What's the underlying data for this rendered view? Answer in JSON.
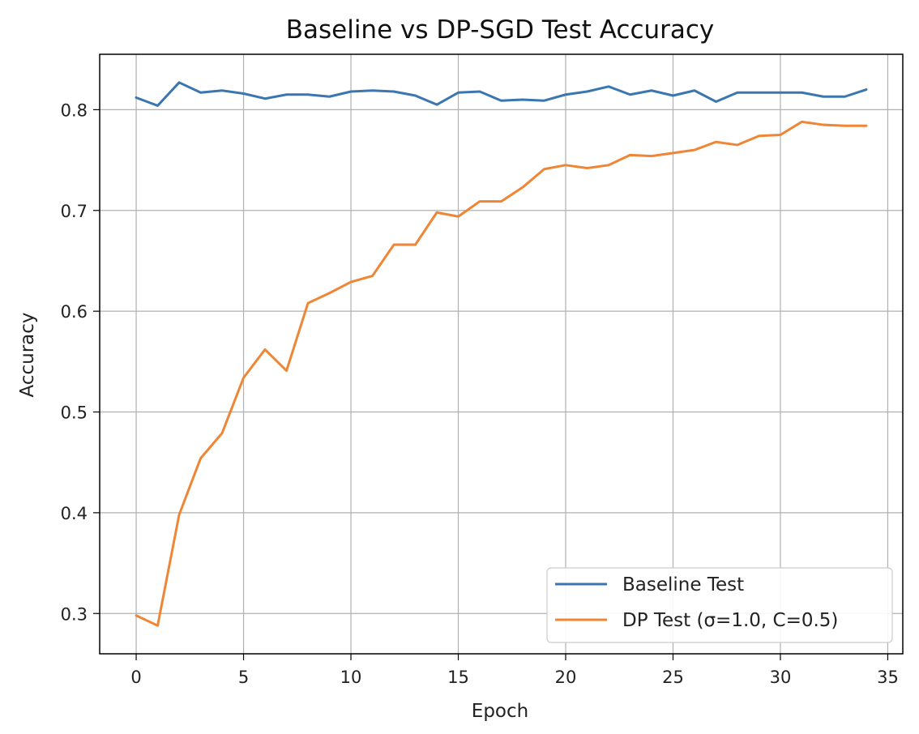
{
  "chart_data": {
    "type": "line",
    "title": "Baseline vs DP-SGD Test Accuracy",
    "xlabel": "Epoch",
    "ylabel": "Accuracy",
    "xlim": [
      -1.7,
      35.7
    ],
    "ylim": [
      0.26,
      0.855
    ],
    "xticks": [
      0,
      5,
      10,
      15,
      20,
      25,
      30,
      35
    ],
    "yticks": [
      0.3,
      0.4,
      0.5,
      0.6,
      0.7,
      0.8
    ],
    "xtick_labels": [
      "0",
      "5",
      "10",
      "15",
      "20",
      "25",
      "30",
      "35"
    ],
    "ytick_labels": [
      "0.3",
      "0.4",
      "0.5",
      "0.6",
      "0.7",
      "0.8"
    ],
    "grid": true,
    "legend_position": "bottom-right",
    "x": [
      0,
      1,
      2,
      3,
      4,
      5,
      6,
      7,
      8,
      9,
      10,
      11,
      12,
      13,
      14,
      15,
      16,
      17,
      18,
      19,
      20,
      21,
      22,
      23,
      24,
      25,
      26,
      27,
      28,
      29,
      30,
      31,
      32,
      33,
      34
    ],
    "series": [
      {
        "name": "Baseline Test",
        "color": "#3a76af",
        "values": [
          0.812,
          0.804,
          0.827,
          0.817,
          0.819,
          0.816,
          0.811,
          0.815,
          0.815,
          0.813,
          0.818,
          0.819,
          0.818,
          0.814,
          0.805,
          0.817,
          0.818,
          0.809,
          0.81,
          0.809,
          0.815,
          0.818,
          0.823,
          0.815,
          0.819,
          0.814,
          0.819,
          0.808,
          0.817,
          0.817,
          0.817,
          0.817,
          0.813,
          0.813,
          0.82
        ]
      },
      {
        "name": "DP Test (σ=1.0, C=0.5)",
        "color": "#ef8636",
        "values": [
          0.298,
          0.288,
          0.398,
          0.454,
          0.479,
          0.534,
          0.562,
          0.541,
          0.608,
          0.618,
          0.629,
          0.635,
          0.666,
          0.666,
          0.698,
          0.694,
          0.709,
          0.709,
          0.723,
          0.741,
          0.745,
          0.742,
          0.745,
          0.755,
          0.754,
          0.757,
          0.76,
          0.768,
          0.765,
          0.774,
          0.775,
          0.788,
          0.785,
          0.784,
          0.784
        ]
      }
    ]
  }
}
